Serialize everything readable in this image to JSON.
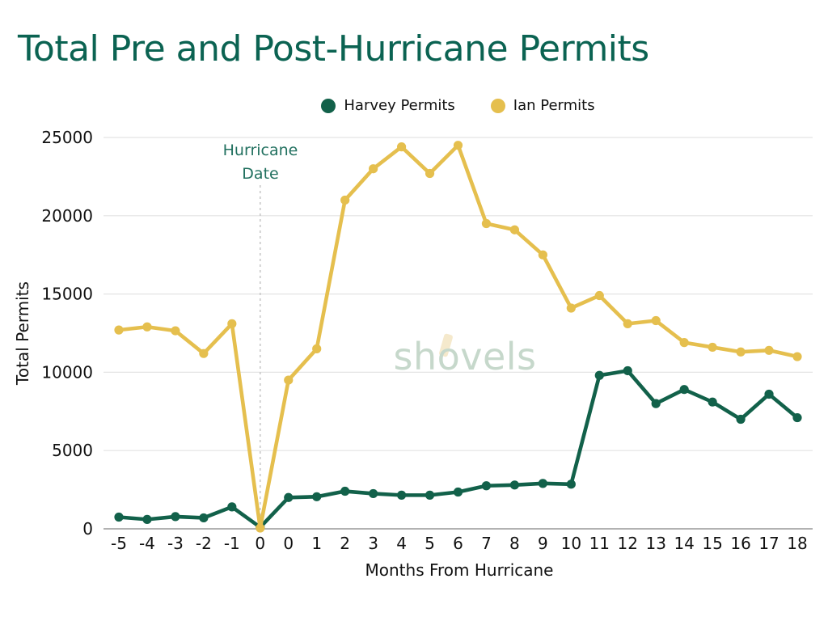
{
  "title": {
    "text": "Total Pre and Post-Hurricane Permits",
    "color": "#0b6352"
  },
  "legend": {
    "position": "top-center",
    "items": [
      {
        "label": "Harvey Permits",
        "color": "#12614a"
      },
      {
        "label": "Ian Permits",
        "color": "#e5bf4e"
      }
    ]
  },
  "annotation": {
    "line1": "Hurricane",
    "line2": "Date",
    "color": "#21705f"
  },
  "watermark": {
    "text": "shovels",
    "color": "#c6d8cb",
    "handle_color": "#f5e9cc"
  },
  "colors": {
    "gridline": "#e4e4e4",
    "axis_line": "#a7a7a7",
    "dashed_vline": "#c9c9c9",
    "tick_text": "#111111"
  },
  "chart_data": {
    "type": "line",
    "title": "Total Pre and Post-Hurricane Permits",
    "xlabel": "Months From Hurricane",
    "ylabel": "Total Permits",
    "categories": [
      "-5",
      "-4",
      "-3",
      "-2",
      "-1",
      "0",
      "0",
      "1",
      "2",
      "3",
      "4",
      "5",
      "6",
      "7",
      "8",
      "9",
      "10",
      "11",
      "12",
      "13",
      "14",
      "15",
      "16",
      "17",
      "18"
    ],
    "yticks": [
      0,
      5000,
      10000,
      15000,
      20000,
      25000
    ],
    "ylim": [
      0,
      25000
    ],
    "grid": true,
    "legend_position": "top-center",
    "vline": {
      "category_index": 5,
      "label": "Hurricane Date",
      "style": "dashed"
    },
    "series": [
      {
        "name": "Harvey Permits",
        "color": "#12614a",
        "values": [
          750,
          600,
          780,
          700,
          1400,
          100,
          2000,
          2050,
          2400,
          2250,
          2150,
          2150,
          2350,
          2750,
          2800,
          2900,
          2850,
          9800,
          10100,
          8000,
          8900,
          8100,
          7000,
          8600,
          7100
        ]
      },
      {
        "name": "Ian Permits",
        "color": "#e5bf4e",
        "values": [
          12700,
          12900,
          12650,
          11200,
          13100,
          50,
          9500,
          11500,
          21000,
          23000,
          24400,
          22700,
          24500,
          19500,
          19100,
          17500,
          14100,
          14900,
          13100,
          13300,
          11900,
          11600,
          11300,
          11400,
          11000
        ]
      }
    ]
  }
}
